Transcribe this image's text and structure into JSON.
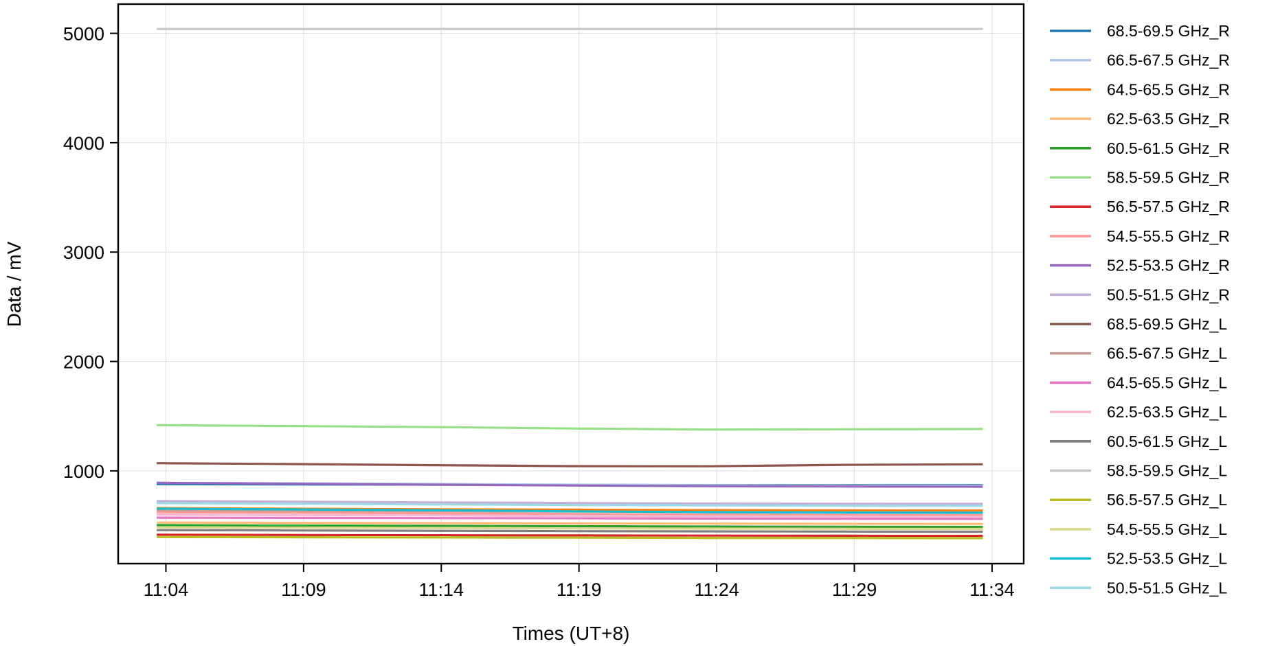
{
  "chart_data": {
    "type": "line",
    "xlabel": "Times (UT+8)",
    "ylabel": "Data / mV",
    "xlim": [
      "11:02:16",
      "11:35:09"
    ],
    "ylim": [
      152,
      5267
    ],
    "x_ticks": [
      "11:04",
      "11:09",
      "11:14",
      "11:19",
      "11:24",
      "11:29",
      "11:34"
    ],
    "y_ticks": [
      1000,
      2000,
      3000,
      4000,
      5000
    ],
    "grid": true,
    "legend_position": "outside-right",
    "x": [
      "11:03:40",
      "11:08:40",
      "11:13:40",
      "11:18:40",
      "11:23:40",
      "11:28:40",
      "11:33:40"
    ],
    "series": [
      {
        "name": "68.5-69.5 GHz_R",
        "color": "#1f77b4",
        "values": [
          879,
          876,
          874,
          872,
          870,
          870,
          870
        ]
      },
      {
        "name": "66.5-67.5 GHz_R",
        "color": "#aec7e8",
        "values": [
          890,
          886,
          880,
          874,
          868,
          866,
          865
        ]
      },
      {
        "name": "64.5-65.5 GHz_R",
        "color": "#ff7f0e",
        "values": [
          660,
          654,
          649,
          645,
          641,
          639,
          638
        ]
      },
      {
        "name": "62.5-63.5 GHz_R",
        "color": "#ffbb78",
        "values": [
          527,
          525,
          522,
          520,
          518,
          516,
          515
        ]
      },
      {
        "name": "60.5-61.5 GHz_R",
        "color": "#2ca02c",
        "values": [
          504,
          500,
          497,
          494,
          491,
          489,
          488
        ]
      },
      {
        "name": "58.5-59.5 GHz_R",
        "color": "#98df8a",
        "values": [
          1418,
          1410,
          1400,
          1388,
          1378,
          1380,
          1383
        ]
      },
      {
        "name": "56.5-57.5 GHz_R",
        "color": "#d62728",
        "values": [
          416,
          414,
          412,
          410,
          408,
          407,
          406
        ]
      },
      {
        "name": "54.5-55.5 GHz_R",
        "color": "#ff9896",
        "values": [
          623,
          618,
          612,
          606,
          601,
          597,
          595
        ]
      },
      {
        "name": "52.5-53.5 GHz_R",
        "color": "#9467bd",
        "values": [
          890,
          882,
          874,
          866,
          860,
          857,
          855
        ]
      },
      {
        "name": "50.5-51.5 GHz_R",
        "color": "#c5b0d5",
        "values": [
          724,
          718,
          712,
          706,
          701,
          699,
          698
        ]
      },
      {
        "name": "68.5-69.5 GHz_L",
        "color": "#8c564b",
        "values": [
          1070,
          1062,
          1052,
          1043,
          1042,
          1055,
          1060
        ]
      },
      {
        "name": "66.5-67.5 GHz_L",
        "color": "#c49c94",
        "values": [
          640,
          636,
          632,
          628,
          625,
          622,
          620
        ]
      },
      {
        "name": "64.5-65.5 GHz_L",
        "color": "#e377c2",
        "values": [
          572,
          570,
          568,
          566,
          564,
          562,
          561
        ]
      },
      {
        "name": "62.5-63.5 GHz_L",
        "color": "#f7b6d2",
        "values": [
          600,
          596,
          592,
          588,
          585,
          582,
          580
        ]
      },
      {
        "name": "60.5-61.5 GHz_L",
        "color": "#7f7f7f",
        "values": [
          458,
          455,
          452,
          449,
          447,
          445,
          444
        ]
      },
      {
        "name": "58.5-59.5 GHz_L",
        "color": "#c7c7c7",
        "values": [
          5040,
          5040,
          5040,
          5040,
          5040,
          5040,
          5040
        ]
      },
      {
        "name": "56.5-57.5 GHz_L",
        "color": "#bcbd22",
        "values": [
          395,
          393,
          391,
          389,
          387,
          386,
          385
        ]
      },
      {
        "name": "54.5-55.5 GHz_L",
        "color": "#dbdb8d",
        "values": [
          483,
          480,
          477,
          474,
          472,
          470,
          469
        ]
      },
      {
        "name": "52.5-53.5 GHz_L",
        "color": "#17becf",
        "values": [
          655,
          648,
          640,
          630,
          622,
          619,
          617
        ]
      },
      {
        "name": "50.5-51.5 GHz_L",
        "color": "#9edae5",
        "values": [
          705,
          699,
          693,
          688,
          684,
          681,
          680
        ]
      }
    ]
  }
}
